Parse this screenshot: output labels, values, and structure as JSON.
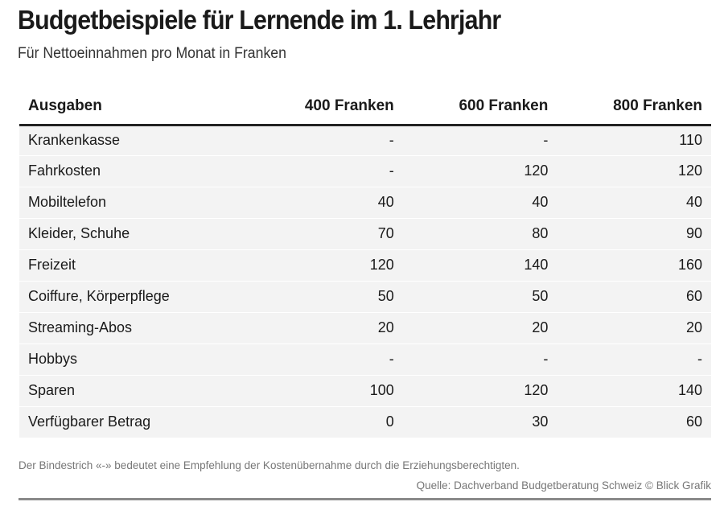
{
  "title": "Budgetbeispiele für Lernende im 1. Lehrjahr",
  "subtitle": "Für Nettoeinnahmen pro Monat in Franken",
  "note": "Der Bindestrich «-» bedeutet eine Empfehlung der Kostenübernahme durch die Erziehungsberechtigten.",
  "source": "Quelle: Dachverband Budgetberatung Schweiz © Blick Grafik",
  "chart_data": {
    "type": "table",
    "title": "Budgetbeispiele für Lernende im 1. Lehrjahr",
    "subtitle": "Für Nettoeinnahmen pro Monat in Franken",
    "columns": [
      "Ausgaben",
      "400 Franken",
      "600 Franken",
      "800 Franken"
    ],
    "rows": [
      [
        "Krankenkasse",
        "-",
        "-",
        "110"
      ],
      [
        "Fahrkosten",
        "-",
        "120",
        "120"
      ],
      [
        "Mobiltelefon",
        "40",
        "40",
        "40"
      ],
      [
        "Kleider, Schuhe",
        "70",
        "80",
        "90"
      ],
      [
        "Freizeit",
        "120",
        "140",
        "160"
      ],
      [
        "Coiffure, Körperpflege",
        "50",
        "50",
        "60"
      ],
      [
        "Streaming-Abos",
        "20",
        "20",
        "20"
      ],
      [
        "Hobbys",
        "-",
        "-",
        "-"
      ],
      [
        "Sparen",
        "100",
        "120",
        "140"
      ],
      [
        "Verfügbarer Betrag",
        "0",
        "30",
        "60"
      ]
    ]
  }
}
